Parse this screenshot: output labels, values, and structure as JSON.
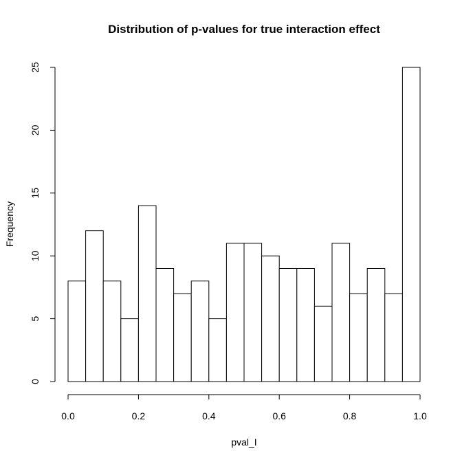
{
  "chart_data": {
    "type": "histogram",
    "title": "Distribution of p-values for true interaction effect",
    "xlabel": "pval_I",
    "ylabel": "Frequency",
    "bin_edges": [
      0.0,
      0.05,
      0.1,
      0.15,
      0.2,
      0.25,
      0.3,
      0.35,
      0.4,
      0.45,
      0.5,
      0.55,
      0.6,
      0.65,
      0.7,
      0.75,
      0.8,
      0.85,
      0.9,
      0.95,
      1.0
    ],
    "values": [
      8,
      12,
      8,
      5,
      14,
      9,
      7,
      8,
      5,
      11,
      11,
      10,
      9,
      9,
      6,
      11,
      7,
      9,
      7,
      25
    ],
    "xlim": [
      0,
      1
    ],
    "ylim": [
      0,
      25
    ],
    "x_ticks": [
      "0.0",
      "0.2",
      "0.4",
      "0.6",
      "0.8",
      "1.0"
    ],
    "x_tick_values": [
      0,
      0.2,
      0.4,
      0.6,
      0.8,
      1.0
    ],
    "y_ticks": [
      "0",
      "5",
      "10",
      "15",
      "20",
      "25"
    ],
    "y_tick_values": [
      0,
      5,
      10,
      15,
      20,
      25
    ],
    "bar_fill": "#ffffff",
    "bar_stroke": "#000000",
    "grid": false
  }
}
